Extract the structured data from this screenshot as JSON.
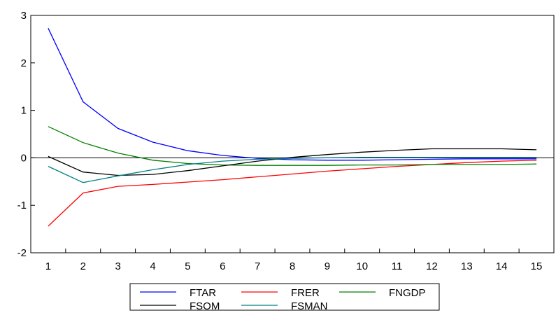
{
  "chart_data": {
    "type": "line",
    "title": "",
    "xlabel": "",
    "ylabel": "",
    "x": [
      1,
      2,
      3,
      4,
      5,
      6,
      7,
      8,
      9,
      10,
      11,
      12,
      13,
      14,
      15
    ],
    "xlim": [
      0.5,
      15.5
    ],
    "ylim": [
      -2,
      3
    ],
    "yticks": [
      -2,
      -1,
      0,
      1,
      2,
      3
    ],
    "xtick_labels": [
      "1",
      "2",
      "3",
      "4",
      "5",
      "6",
      "7",
      "8",
      "9",
      "10",
      "11",
      "12",
      "13",
      "14",
      "15"
    ],
    "ytick_labels": [
      "-2",
      "-1",
      "0",
      "1",
      "2",
      "3"
    ],
    "zero_line": true,
    "grid": false,
    "legend_placement": "bottom-center",
    "series": [
      {
        "name": "FTAR",
        "color": "#0000ff",
        "values": [
          2.73,
          1.18,
          0.62,
          0.33,
          0.15,
          0.05,
          -0.01,
          -0.04,
          -0.05,
          -0.05,
          -0.04,
          -0.03,
          -0.02,
          -0.02,
          -0.02
        ]
      },
      {
        "name": "FRER",
        "color": "#ff0000",
        "values": [
          -1.44,
          -0.74,
          -0.6,
          -0.56,
          -0.51,
          -0.46,
          -0.4,
          -0.34,
          -0.28,
          -0.23,
          -0.18,
          -0.14,
          -0.1,
          -0.07,
          -0.05
        ]
      },
      {
        "name": "FNGDP",
        "color": "#008000",
        "values": [
          0.66,
          0.32,
          0.1,
          -0.05,
          -0.12,
          -0.15,
          -0.16,
          -0.16,
          -0.16,
          -0.15,
          -0.15,
          -0.14,
          -0.14,
          -0.14,
          -0.13
        ]
      },
      {
        "name": "FSOM",
        "color": "#000000",
        "values": [
          0.03,
          -0.3,
          -0.37,
          -0.35,
          -0.27,
          -0.17,
          -0.07,
          0.01,
          0.07,
          0.12,
          0.16,
          0.19,
          0.19,
          0.19,
          0.17
        ]
      },
      {
        "name": "FSMAN",
        "color": "#008080",
        "values": [
          -0.18,
          -0.52,
          -0.38,
          -0.25,
          -0.14,
          -0.07,
          -0.03,
          -0.01,
          0.0,
          0.01,
          0.01,
          0.01,
          0.01,
          0.01,
          0.01
        ]
      }
    ]
  }
}
